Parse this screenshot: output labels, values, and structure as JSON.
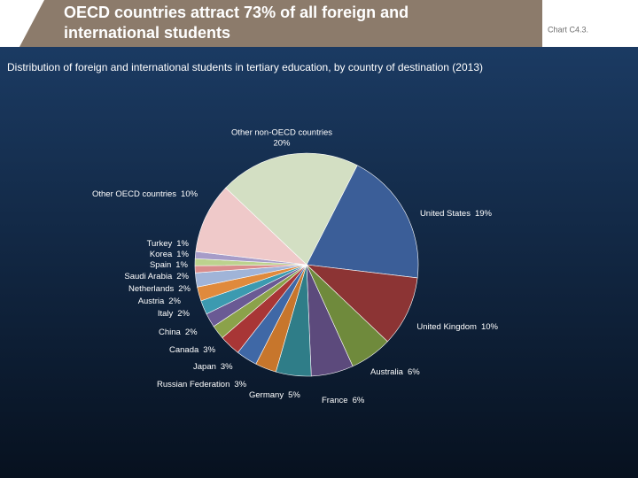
{
  "header": {
    "title_lines": [
      "OECD countries attract 73% of all foreign and",
      "international students"
    ],
    "chart_id": "Chart C4.3."
  },
  "chart_data": {
    "type": "pie",
    "title": "Distribution of foreign and international students in tertiary education, by country of destination (2013)",
    "categories": [
      "United States",
      "United Kingdom",
      "Australia",
      "France",
      "Germany",
      "Russian Federation",
      "Japan",
      "Canada",
      "China",
      "Italy",
      "Austria",
      "Netherlands",
      "Saudi Arabia",
      "Spain",
      "Korea",
      "Turkey",
      "Other OECD countries",
      "Other non-OECD countries"
    ],
    "values": [
      19,
      10,
      6,
      6,
      5,
      3,
      3,
      3,
      2,
      2,
      2,
      2,
      2,
      1,
      1,
      1,
      10,
      20
    ],
    "value_labels": [
      "19%",
      "10%",
      "6%",
      "6%",
      "5%",
      "3%",
      "3%",
      "3%",
      "2%",
      "2%",
      "2%",
      "2%",
      "2%",
      "1%",
      "1%",
      "1%",
      "10%",
      "20%"
    ],
    "colors": [
      "#3b5e98",
      "#8c3434",
      "#6f8a3c",
      "#5c4a7c",
      "#2f7d88",
      "#c7762c",
      "#3f68a6",
      "#a83636",
      "#8ba24a",
      "#6a5a94",
      "#3c9ab0",
      "#e08a3c",
      "#a0b4d8",
      "#d98c8c",
      "#bcd28e",
      "#a69cc8",
      "#efc9c9",
      "#d3dfc3"
    ]
  }
}
